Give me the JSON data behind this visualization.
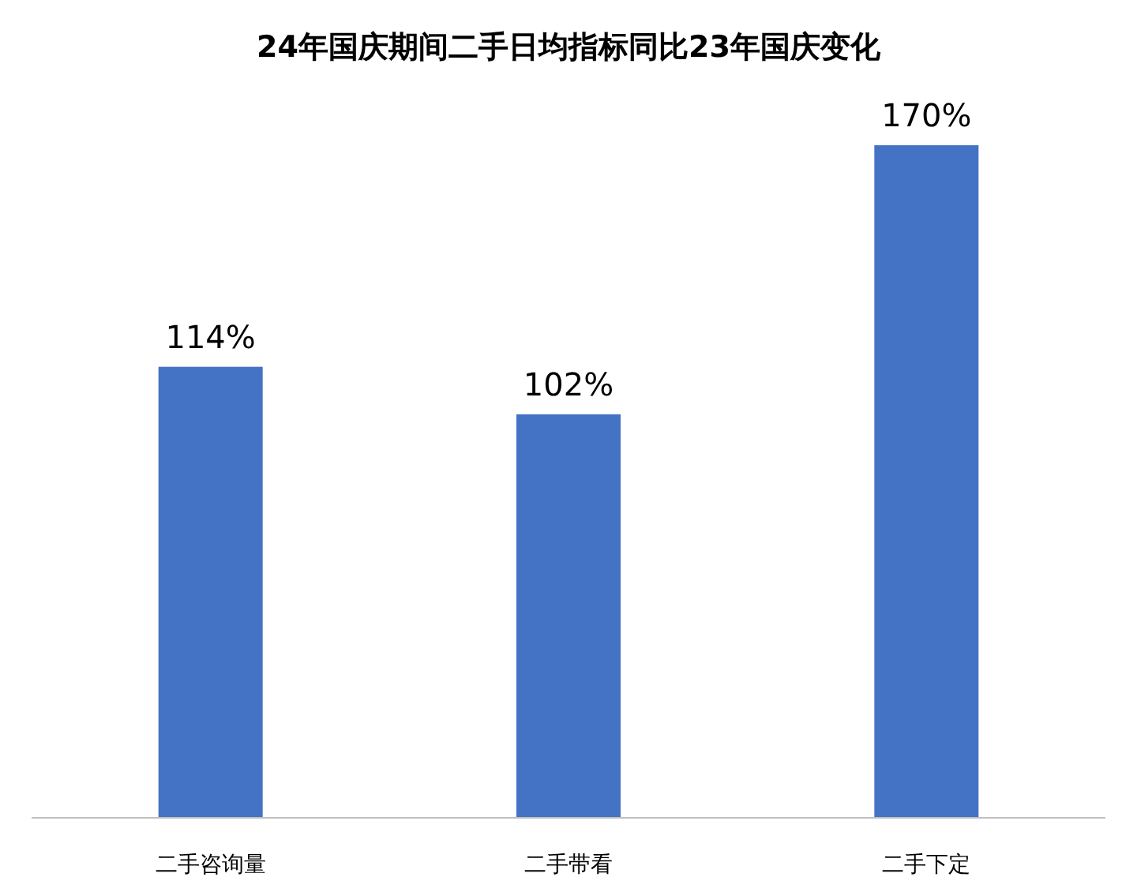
{
  "chart_data": {
    "type": "bar",
    "title": "24年国庆期间二手日均指标同比23年国庆变化",
    "categories": [
      "二手咨询量",
      "二手带看",
      "二手下定"
    ],
    "values": [
      114,
      102,
      170
    ],
    "value_labels": [
      "114%",
      "102%",
      "170%"
    ],
    "color": "#4472c4"
  }
}
